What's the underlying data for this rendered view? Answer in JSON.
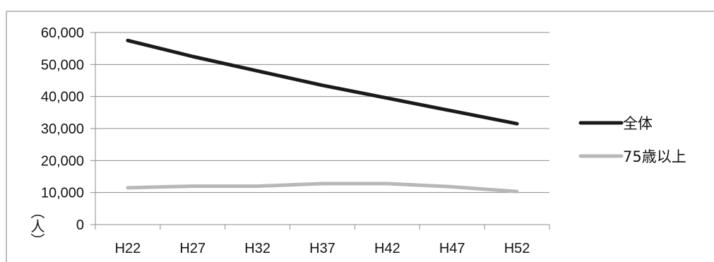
{
  "chart_data": {
    "type": "line",
    "categories": [
      "H22",
      "H27",
      "H32",
      "H37",
      "H42",
      "H47",
      "H52"
    ],
    "series": [
      {
        "name": "全体",
        "color": "#1a1a1a",
        "values": [
          57500,
          52500,
          48000,
          43500,
          39500,
          35500,
          31500
        ]
      },
      {
        "name": "75歳以上",
        "color": "#b8b8b8",
        "values": [
          11500,
          12000,
          12000,
          12800,
          12800,
          11800,
          10300
        ]
      }
    ],
    "y_ticks": [
      0,
      10000,
      20000,
      30000,
      40000,
      50000,
      60000
    ],
    "y_tick_labels": [
      "0",
      "10,000",
      "20,000",
      "30,000",
      "40,000",
      "50,000",
      "60,000"
    ],
    "ylim": [
      0,
      60000
    ],
    "ylabel": "（人）",
    "grid": true,
    "legend_position": "right"
  }
}
